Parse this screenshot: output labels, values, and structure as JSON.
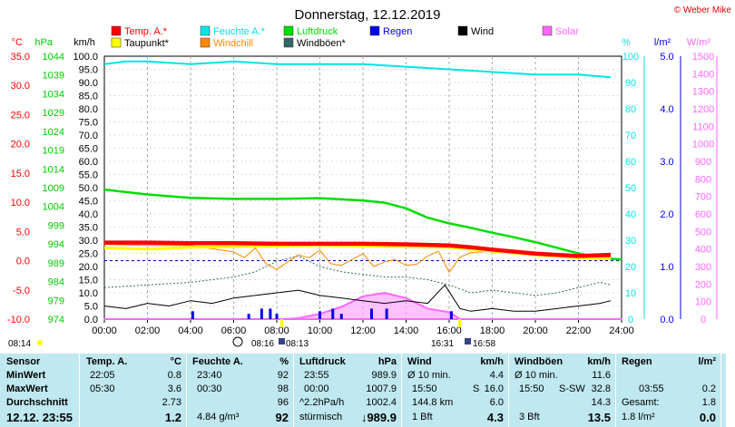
{
  "header": {
    "title": "Donnerstag, 12.12.2019",
    "brand": "© Weber Mike"
  },
  "legend": [
    {
      "label": "Temp. A.*",
      "color": "#ff0000"
    },
    {
      "label": "Feuchte A.*",
      "color": "#00e5e5"
    },
    {
      "label": "Luftdruck",
      "color": "#00dd00"
    },
    {
      "label": "Regen",
      "color": "#0000ee"
    },
    {
      "label": "Wind",
      "color": "#000000"
    },
    {
      "label": "Solar",
      "color": "#ff66ff"
    },
    {
      "label": "Taupunkt*",
      "color": "#ffff00"
    },
    {
      "label": "Windchill",
      "color": "#ff8800"
    },
    {
      "label": "Windböen*",
      "color": "#336666"
    }
  ],
  "chart_data": {
    "type": "line",
    "x_unit": "hour",
    "xlim": [
      0,
      24
    ],
    "x_ticks": [
      "00:00",
      "02:00",
      "04:00",
      "06:00",
      "08:00",
      "10:00",
      "12:00",
      "14:00",
      "16:00",
      "18:00",
      "20:00",
      "22:00",
      "24:00"
    ],
    "axes": {
      "temp": {
        "unit": "°C",
        "ylim": [
          -10,
          35
        ],
        "ticks": [
          "35.0",
          "30.0",
          "25.0",
          "20.0",
          "15.0",
          "10.0",
          "5.0",
          "0.0",
          "-5.0",
          "-10.0"
        ],
        "color": "#ff0000"
      },
      "pressure": {
        "unit": "hPa",
        "ylim": [
          974,
          1044
        ],
        "ticks": [
          "1044",
          "1039",
          "1034",
          "1029",
          "1024",
          "1019",
          "1014",
          "1009",
          "1004",
          "999",
          "994",
          "989",
          "984",
          "979",
          "974"
        ],
        "color": "#00cc00"
      },
      "wind": {
        "unit": "km/h",
        "ylim": [
          0,
          100
        ],
        "ticks": [
          "100.0",
          "95.0",
          "90.0",
          "85.0",
          "80.0",
          "75.0",
          "70.0",
          "65.0",
          "60.0",
          "55.0",
          "50.0",
          "45.0",
          "40.0",
          "35.0",
          "30.0",
          "25.0",
          "20.0",
          "15.0",
          "10.0",
          "5.0",
          "0.0"
        ],
        "color": "#000000"
      },
      "humidity": {
        "unit": "%",
        "ylim": [
          0,
          100
        ],
        "ticks": [
          "100",
          "90",
          "80",
          "70",
          "60",
          "50",
          "40",
          "30",
          "20",
          "10",
          "0"
        ],
        "color": "#00e5e5"
      },
      "rain": {
        "unit": "l/m²",
        "ylim": [
          0,
          5
        ],
        "ticks": [
          "5.0",
          "4.0",
          "3.0",
          "2.0",
          "1.0",
          "0.0"
        ],
        "color": "#0000ee"
      },
      "solar": {
        "unit": "W/m²",
        "ylim": [
          0,
          1500
        ],
        "ticks": [
          "1500",
          "1400",
          "1300",
          "1200",
          "1100",
          "1000",
          "900",
          "800",
          "700",
          "600",
          "500",
          "400",
          "300",
          "200",
          "100",
          "0"
        ],
        "color": "#ff66ff"
      }
    },
    "series": [
      {
        "name": "Temp. A.*",
        "axis": "temp",
        "color": "#ff0000",
        "x": [
          0,
          2,
          4,
          6,
          8,
          10,
          12,
          14,
          16,
          17,
          18,
          20,
          22,
          23.5
        ],
        "y": [
          3.1,
          3.1,
          3.0,
          3.0,
          2.9,
          2.9,
          2.9,
          2.8,
          2.6,
          2.3,
          1.9,
          1.2,
          0.8,
          1.0
        ]
      },
      {
        "name": "Taupunkt*",
        "axis": "temp",
        "color": "#ffff00",
        "x": [
          0,
          2,
          4,
          6,
          8,
          10,
          12,
          14,
          16,
          18,
          20,
          22,
          23.5
        ],
        "y": [
          2.2,
          2.0,
          2.3,
          2.4,
          2.5,
          2.6,
          2.5,
          2.4,
          2.3,
          1.6,
          1.0,
          0.5,
          0.3
        ]
      },
      {
        "name": "Feuchte A.*",
        "axis": "humidity",
        "color": "#00e5e5",
        "x": [
          0,
          1,
          2,
          4,
          6,
          8,
          10,
          12,
          14,
          16,
          18,
          20,
          22,
          23.5
        ],
        "y": [
          97,
          98,
          98,
          97,
          98,
          97,
          97,
          97,
          96,
          95,
          94,
          93,
          93,
          92
        ]
      },
      {
        "name": "Luftdruck",
        "axis": "pressure",
        "color": "#00dd00",
        "x": [
          0,
          2,
          4,
          6,
          8,
          10,
          12,
          13,
          14,
          15,
          16,
          17,
          18,
          19,
          20,
          21,
          22,
          23,
          24
        ],
        "y": [
          1008.5,
          1007.2,
          1006.3,
          1006.0,
          1006.0,
          1006.2,
          1005.6,
          1005.0,
          1003.5,
          1001.0,
          999.5,
          998.3,
          997.0,
          995.8,
          994.5,
          993.0,
          991.5,
          990.2,
          989.9
        ]
      },
      {
        "name": "Wind",
        "axis": "wind",
        "color": "#000000",
        "x": [
          0,
          1,
          2,
          3,
          4,
          5,
          6,
          7,
          8,
          9,
          10,
          11,
          12,
          13,
          14,
          15,
          15.8,
          16.5,
          17,
          18,
          19,
          20,
          21,
          22,
          23,
          23.5
        ],
        "y": [
          5,
          4,
          6,
          5,
          7,
          6,
          8,
          9,
          10,
          11,
          9,
          8,
          7,
          6,
          7,
          6,
          13,
          4,
          3,
          4,
          3,
          3,
          4,
          5,
          6,
          7
        ]
      },
      {
        "name": "Windböen*",
        "axis": "wind",
        "color": "#336666",
        "x": [
          0,
          2,
          4,
          6,
          7,
          8,
          9,
          10,
          11,
          12,
          13,
          14,
          15,
          16,
          17,
          18,
          19,
          20,
          21,
          22,
          23,
          23.5
        ],
        "y": [
          12,
          13,
          14,
          16,
          18,
          22,
          24,
          20,
          18,
          17,
          16,
          16,
          15,
          13,
          10,
          11,
          10,
          9,
          10,
          12,
          14,
          13
        ]
      },
      {
        "name": "Windchill",
        "axis": "temp",
        "color": "#ff8800",
        "x": [
          0,
          2,
          4,
          6,
          6.5,
          7,
          7.5,
          8,
          8.5,
          9,
          9.5,
          10,
          10.5,
          11,
          11.5,
          12,
          12.5,
          13,
          13.5,
          14,
          14.5,
          15,
          15.5,
          16,
          16.5,
          17,
          18,
          20,
          22,
          23.5
        ],
        "y": [
          2.8,
          2.6,
          2.6,
          1.5,
          0.5,
          2.2,
          -0.5,
          -1.5,
          -0.2,
          1.0,
          0.5,
          1.8,
          -0.5,
          -0.8,
          0.2,
          1.2,
          -1.0,
          -0.2,
          0.2,
          -0.8,
          -0.6,
          0.8,
          1.6,
          -2.0,
          0.6,
          1.4,
          1.6,
          1.0,
          0.6,
          0.6
        ]
      },
      {
        "name": "Solar",
        "axis": "solar",
        "color": "#ff66ff",
        "x": [
          0,
          8.3,
          9,
          10,
          11,
          12,
          13,
          14,
          15,
          16,
          16.5,
          24
        ],
        "y": [
          0,
          0,
          5,
          30,
          70,
          130,
          150,
          120,
          60,
          40,
          0,
          0
        ]
      },
      {
        "name": "Regen",
        "axis": "rain",
        "color": "#0000ee",
        "type": "bar",
        "x": [
          4.1,
          6.7,
          7.3,
          7.7,
          8,
          10,
          10.6,
          11,
          12.4,
          13.1,
          16.1
        ],
        "y": [
          0.15,
          0.1,
          0.2,
          0.2,
          0.1,
          0.15,
          0.2,
          0.1,
          0.2,
          0.2,
          0.15
        ]
      }
    ],
    "temp_zero_reference": 0,
    "time_markers": {
      "left": "08:14",
      "sunrise": "08:16",
      "sunrise2": "08:13",
      "sunset": "16:31",
      "sunset2": "16:58"
    }
  },
  "table": {
    "row_labels": [
      "Sensor",
      "MinWert",
      "MaxWert",
      "Durchschnitt",
      "12.12. 23:55"
    ],
    "temp": {
      "header": "Temp. A.",
      "unit": "°C",
      "min_time": "22:05",
      "min": "0.8",
      "max_time": "05:30",
      "max": "3.6",
      "avg": "2.73",
      "current": "1.2"
    },
    "humidity": {
      "header": "Feuchte A.",
      "unit": "%",
      "min_time": "23:40",
      "min": "92",
      "max_time": "00:30",
      "max": "98",
      "avg": "96",
      "abs": "4.84 g/m³",
      "current": "92"
    },
    "pressure": {
      "header": "Luftdruck",
      "unit": "hPa",
      "min_time": "23:55",
      "min": "989.9",
      "max_time": "00:00",
      "max": "1007.9",
      "trend": "^2.2hPa/h",
      "avg": "1002.4",
      "weather": "stürmisch",
      "current": "↓989.9"
    },
    "wind": {
      "header": "Wind",
      "unit": "km/h",
      "r1_label": "Ø 10 min.",
      "r1_value": "4.4",
      "r2_time": "15:50",
      "r2_dir": "S",
      "r2_value": "16.0",
      "r3_label": "144.8 km",
      "r3_value": "6.0",
      "bft": "1 Bft",
      "current": "4.3"
    },
    "gust": {
      "header": "Windböen",
      "unit": "km/h",
      "r1_label": "Ø 10 min.",
      "r1_value": "11.6",
      "r2_time": "15:50",
      "r2_dir": "S-SW",
      "r2_value": "32.8",
      "r3_value": "14.3",
      "bft": "3 Bft",
      "current": "13.5"
    },
    "rain": {
      "header": "Regen",
      "unit": "l/m²",
      "r2_time": "03:55",
      "r2_value": "0.2",
      "total_label": "Gesamt:",
      "total": "1.8",
      "day": "1.8 l/m²",
      "current": "0.0"
    }
  }
}
